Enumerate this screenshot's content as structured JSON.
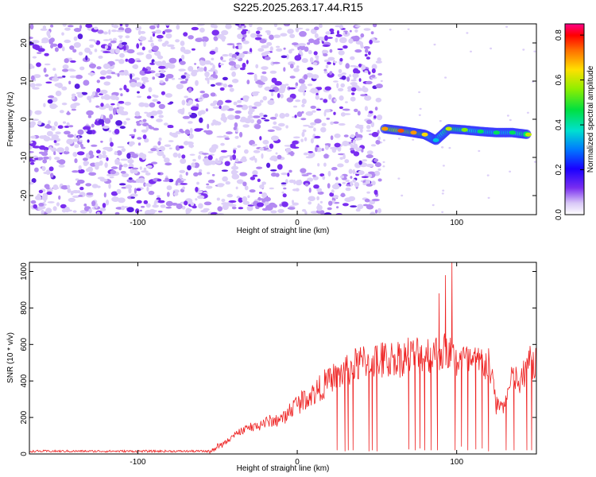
{
  "title": "S225.2025.263.17.44.R15",
  "chart_data": [
    {
      "type": "heatmap",
      "title": "",
      "xlabel": "Height of straight line (km)",
      "ylabel": "Frequency (Hz)",
      "xlim": [
        -168,
        150
      ],
      "ylim": [
        -25,
        25
      ],
      "xticks": [
        -100,
        0,
        100
      ],
      "yticks": [
        -20,
        -10,
        0,
        10,
        20
      ],
      "colorbar": {
        "label": "Normalized spectral amplitude",
        "range": [
          0.0,
          0.85
        ],
        "ticks": [
          "0.0",
          "0.2",
          "0.4",
          "0.6",
          "0.8"
        ],
        "tick_values": [
          0.0,
          0.2,
          0.4,
          0.6,
          0.8
        ]
      },
      "noise_region": {
        "x_range": [
          -168,
          52
        ],
        "freq_range": [
          -25,
          25
        ],
        "typical_amplitude": 0.05
      },
      "signal_track": [
        {
          "x": 55,
          "freq": -2.5,
          "amp": 0.7
        },
        {
          "x": 65,
          "freq": -3.0,
          "amp": 0.75
        },
        {
          "x": 73,
          "freq": -3.5,
          "amp": 0.7
        },
        {
          "x": 80,
          "freq": -4.0,
          "amp": 0.65
        },
        {
          "x": 87,
          "freq": -5.5,
          "amp": 0.35
        },
        {
          "x": 95,
          "freq": -2.5,
          "amp": 0.6
        },
        {
          "x": 105,
          "freq": -2.8,
          "amp": 0.55
        },
        {
          "x": 115,
          "freq": -3.2,
          "amp": 0.45
        },
        {
          "x": 125,
          "freq": -3.5,
          "amp": 0.45
        },
        {
          "x": 135,
          "freq": -3.5,
          "amp": 0.45
        },
        {
          "x": 145,
          "freq": -4.0,
          "amp": 0.6
        }
      ]
    },
    {
      "type": "line",
      "title": "",
      "xlabel": "Height of straight line (km)",
      "ylabel": "SNR (10 * v/v)",
      "xlim": [
        -168,
        150
      ],
      "ylim": [
        0,
        1050
      ],
      "xticks": [
        -100,
        0,
        100
      ],
      "yticks": [
        0,
        200,
        400,
        600,
        800,
        1000
      ],
      "series": [
        {
          "name": "SNR",
          "color": "#ee2222",
          "envelope_x": [
            -168,
            -120,
            -55,
            -45,
            -35,
            -20,
            -10,
            0,
            10,
            20,
            30,
            40,
            50,
            60,
            70,
            80,
            90,
            95,
            100,
            110,
            120,
            125,
            130,
            135,
            140,
            145,
            150
          ],
          "envelope_y": [
            15,
            15,
            15,
            60,
            130,
            170,
            190,
            280,
            330,
            400,
            450,
            500,
            510,
            520,
            540,
            540,
            560,
            560,
            520,
            500,
            500,
            270,
            270,
            420,
            380,
            500,
            500
          ],
          "spikes": [
            {
              "x": 25,
              "y": 20
            },
            {
              "x": 30,
              "y": 15
            },
            {
              "x": 32,
              "y": 20
            },
            {
              "x": 35,
              "y": 20
            },
            {
              "x": 45,
              "y": 15
            },
            {
              "x": 47,
              "y": 20
            },
            {
              "x": 50,
              "y": 15
            },
            {
              "x": 70,
              "y": 25
            },
            {
              "x": 74,
              "y": 20
            },
            {
              "x": 77,
              "y": 30
            },
            {
              "x": 80,
              "y": 20
            },
            {
              "x": 84,
              "y": 20
            },
            {
              "x": 88,
              "y": 20
            },
            {
              "x": 89,
              "y": 880
            },
            {
              "x": 93,
              "y": 980
            },
            {
              "x": 97,
              "y": 1050
            },
            {
              "x": 99,
              "y": 20
            },
            {
              "x": 103,
              "y": 40
            },
            {
              "x": 107,
              "y": 20
            },
            {
              "x": 112,
              "y": 25
            },
            {
              "x": 116,
              "y": 30
            },
            {
              "x": 120,
              "y": 15
            },
            {
              "x": 131,
              "y": 20
            },
            {
              "x": 136,
              "y": 20
            },
            {
              "x": 144,
              "y": 20
            },
            {
              "x": 147,
              "y": 20
            }
          ]
        }
      ]
    }
  ]
}
